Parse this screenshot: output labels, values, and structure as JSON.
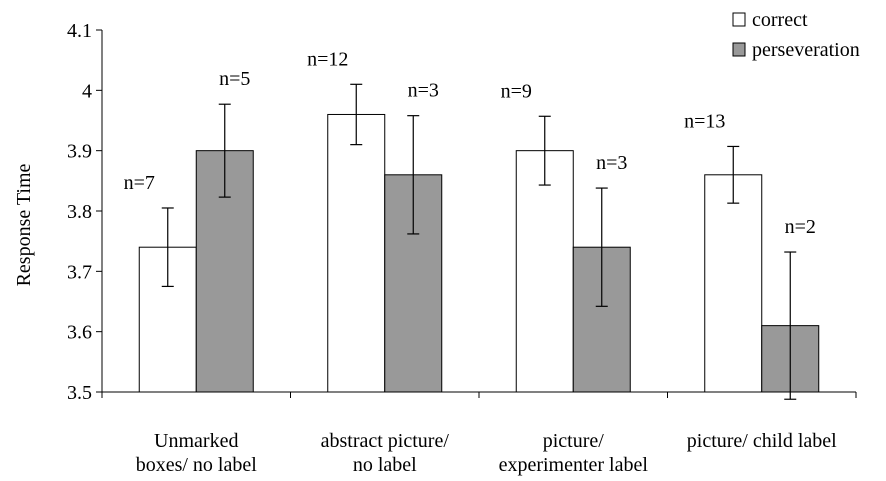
{
  "chart_data": {
    "type": "bar",
    "title": "",
    "xlabel": "",
    "ylabel": "Response Time",
    "ylim": [
      3.5,
      4.1
    ],
    "yticks": [
      3.5,
      3.6,
      3.7,
      3.8,
      3.9,
      4,
      4.1
    ],
    "ytick_labels": [
      "3.5",
      "3.6",
      "3.7",
      "3.8",
      "3.9",
      "4",
      "4.1"
    ],
    "grid": false,
    "legend_position": "top-right",
    "categories": [
      [
        "Unmarked",
        "boxes/ no label"
      ],
      [
        "abstract picture/",
        "no label"
      ],
      [
        "picture/",
        "experimenter label"
      ],
      [
        "picture/ child label"
      ]
    ],
    "series": [
      {
        "name": "correct",
        "color": "#ffffff",
        "values": [
          3.74,
          3.96,
          3.9,
          3.86
        ],
        "error": [
          0.065,
          0.05,
          0.057,
          0.047
        ],
        "n_labels": [
          "n=7",
          "n=12",
          "n=9",
          "n=13"
        ]
      },
      {
        "name": "perseveration",
        "color": "#999999",
        "values": [
          3.9,
          3.86,
          3.74,
          3.61
        ],
        "error": [
          0.077,
          0.098,
          0.098,
          0.122
        ],
        "n_labels": [
          "n=5",
          "n=3",
          "n=3",
          "n=2"
        ]
      }
    ]
  }
}
